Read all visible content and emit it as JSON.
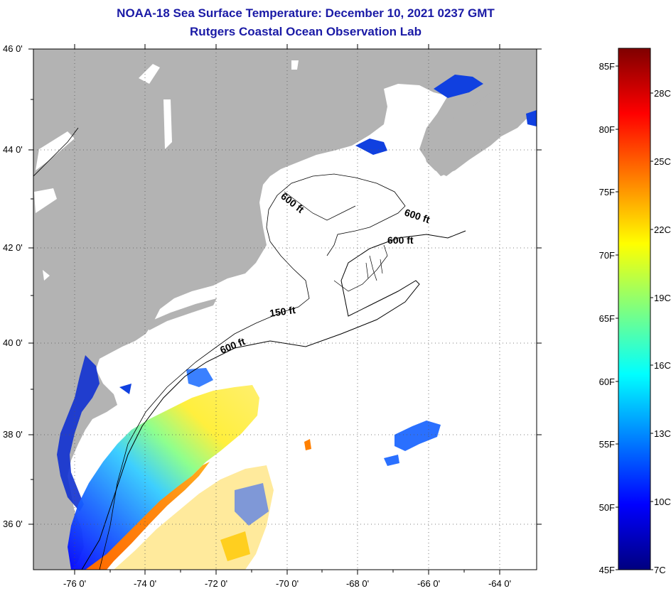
{
  "title": {
    "line1": "NOAA-18 Sea Surface Temperature:  December 10, 2021 0237 GMT",
    "line2": "Rutgers Coastal Ocean Observation Lab"
  },
  "map": {
    "lat_ticks": [
      "46 0'",
      "44 0'",
      "42 0'",
      "40 0'",
      "38 0'",
      "36 0'"
    ],
    "lon_ticks": [
      "-76 0'",
      "-74 0'",
      "-72 0'",
      "-70 0'",
      "-68 0'",
      "-66 0'",
      "-64 0'"
    ],
    "contour_labels": [
      {
        "text": "600 ft",
        "rotate": 38
      },
      {
        "text": "600 ft",
        "rotate": 18
      },
      {
        "text": "600 ft",
        "rotate": 0
      },
      {
        "text": "150 ft",
        "rotate": -8
      },
      {
        "text": "600 ft",
        "rotate": -22
      }
    ],
    "land_color": "#b3b3b3",
    "ocean_color": "#ffffff"
  },
  "colorbar": {
    "fahrenheit": [
      "85F",
      "80F",
      "75F",
      "70F",
      "65F",
      "60F",
      "55F",
      "50F",
      "45F"
    ],
    "celsius": [
      "28C",
      "25C",
      "22C",
      "19C",
      "16C",
      "13C",
      "10C",
      "7C"
    ],
    "colors": [
      "#00007f",
      "#0000ff",
      "#007fff",
      "#00ffff",
      "#7fff7f",
      "#ffff00",
      "#ff7f00",
      "#ff0000",
      "#7f0000"
    ]
  }
}
